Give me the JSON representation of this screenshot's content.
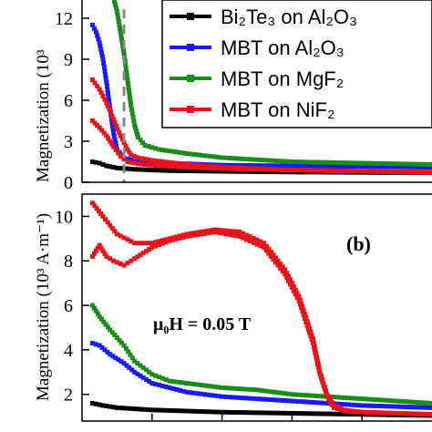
{
  "chart_data": [
    {
      "panel": "top",
      "type": "line",
      "ylabel": "Magnetization (10³",
      "ylim": [
        0,
        14
      ],
      "yticks": [
        0,
        3,
        6,
        9,
        12
      ],
      "xlim": [
        0,
        100
      ],
      "legend_position": "top-right",
      "marker_line_x": 12,
      "series": [
        {
          "name": "Bi₂Te₃ on Al₂O₃",
          "color": "#000000",
          "x": [
            3,
            5,
            7,
            10,
            15,
            25,
            40,
            60,
            80,
            100
          ],
          "y": [
            1.5,
            1.4,
            1.2,
            1.05,
            0.95,
            0.85,
            0.8,
            0.75,
            0.72,
            0.7
          ]
        },
        {
          "name": "MBT on Al₂O₃",
          "color": "#1a1aff",
          "x": [
            3,
            4,
            5,
            6,
            7,
            8,
            9,
            10,
            12,
            15,
            25,
            40,
            60,
            80,
            100
          ],
          "y": [
            11.5,
            11.0,
            10.2,
            9.0,
            7.3,
            5.4,
            3.6,
            2.4,
            1.8,
            1.55,
            1.4,
            1.25,
            1.2,
            1.15,
            1.1
          ]
        },
        {
          "name": "MBT on MgF₂",
          "color": "#1a8c1a",
          "x": [
            9,
            10,
            11,
            12,
            13,
            14,
            15,
            16,
            18,
            22,
            30,
            40,
            60,
            80,
            100
          ],
          "y": [
            13.5,
            12.5,
            11.0,
            9.4,
            7.5,
            5.6,
            4.2,
            3.3,
            2.7,
            2.4,
            2.1,
            1.8,
            1.5,
            1.4,
            1.3
          ]
        },
        {
          "name": "MBT on NiF₂",
          "color": "#e8141b",
          "x": [
            3,
            5,
            7,
            9,
            11,
            13,
            14,
            16,
            20,
            30,
            40,
            60,
            80,
            100
          ],
          "y": [
            7.5,
            6.8,
            5.8,
            4.6,
            3.4,
            2.4,
            2.0,
            1.8,
            1.6,
            1.3,
            1.1,
            0.9,
            0.8,
            0.7
          ]
        },
        {
          "name": "",
          "color": "#e8141b",
          "x": [
            3,
            5,
            7,
            9,
            11,
            13,
            16,
            20,
            30,
            40,
            60,
            80,
            100
          ],
          "y": [
            4.5,
            4.0,
            3.4,
            2.6,
            1.9,
            1.5,
            1.35,
            1.25,
            1.1,
            1.0,
            0.9,
            0.8,
            0.75
          ]
        }
      ]
    },
    {
      "panel": "bottom",
      "type": "line",
      "label": "(b)",
      "annotation": "μ₀H = 0.05 T",
      "ylabel": "Magnetization (10³ A·m⁻¹)",
      "ylim": [
        0.8,
        11
      ],
      "yticks": [
        2,
        4,
        6,
        8,
        10
      ],
      "xlim": [
        0,
        100
      ],
      "series": [
        {
          "name": "Bi₂Te₃ on Al₂O₃",
          "color": "#000000",
          "x": [
            3,
            6,
            10,
            20,
            40,
            60,
            80,
            100
          ],
          "y": [
            1.6,
            1.5,
            1.4,
            1.3,
            1.2,
            1.15,
            1.1,
            1.05
          ]
        },
        {
          "name": "MBT on Al₂O₃",
          "color": "#1a1aff",
          "x": [
            3,
            5,
            8,
            12,
            15,
            20,
            25,
            30,
            40,
            50,
            60,
            70,
            80,
            90,
            100
          ],
          "y": [
            4.3,
            4.2,
            3.8,
            3.4,
            3.0,
            2.5,
            2.3,
            2.1,
            1.9,
            1.8,
            1.7,
            1.6,
            1.5,
            1.45,
            1.4
          ]
        },
        {
          "name": "MBT on MgF₂",
          "color": "#1a8c1a",
          "x": [
            3,
            5,
            8,
            12,
            15,
            20,
            25,
            30,
            40,
            50,
            60,
            70,
            80,
            90,
            100
          ],
          "y": [
            6.0,
            5.5,
            4.9,
            4.2,
            3.5,
            2.9,
            2.6,
            2.5,
            2.3,
            2.2,
            2.0,
            1.9,
            1.8,
            1.7,
            1.6
          ]
        },
        {
          "name": "MBT on NiF₂",
          "color": "#e8141b",
          "x": [
            3,
            6,
            10,
            15,
            20,
            25,
            30,
            38,
            45,
            52,
            58,
            62,
            66,
            68,
            70,
            72,
            75,
            80,
            90,
            100
          ],
          "y": [
            10.6,
            10.0,
            9.2,
            8.8,
            8.8,
            9.0,
            9.2,
            9.4,
            9.3,
            8.8,
            7.6,
            6.4,
            4.5,
            3.0,
            2.0,
            1.5,
            1.3,
            1.2,
            1.15,
            1.1
          ]
        },
        {
          "name": "",
          "color": "#e8141b",
          "x": [
            3,
            5,
            7,
            9,
            12,
            15,
            20,
            25,
            30,
            38,
            45,
            52,
            58,
            62,
            66,
            68,
            70,
            72,
            75,
            80,
            90,
            100
          ],
          "y": [
            8.2,
            8.7,
            8.2,
            8.0,
            7.8,
            8.1,
            8.6,
            8.9,
            9.1,
            9.3,
            9.1,
            8.6,
            7.4,
            6.2,
            4.3,
            2.9,
            1.9,
            1.4,
            1.25,
            1.2,
            1.15,
            1.1
          ]
        }
      ]
    }
  ]
}
